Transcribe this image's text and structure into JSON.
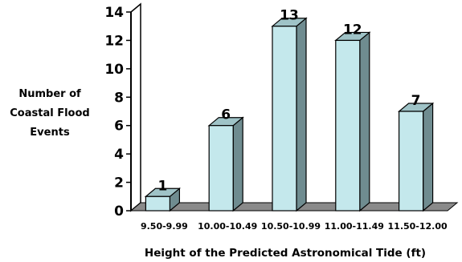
{
  "chart_data": {
    "type": "bar",
    "title": "",
    "xlabel": "Height of the Predicted Astronomical Tide (ft)",
    "ylabel": [
      "Number of",
      "Coastal Flood",
      "Events"
    ],
    "categories": [
      "9.50-9.99",
      "10.00-10.49",
      "10.50-10.99",
      "11.00-11.49",
      "11.50-12.00"
    ],
    "values": [
      1,
      6,
      13,
      12,
      7
    ],
    "data_labels": [
      "1",
      "6",
      "13",
      "12",
      "7"
    ],
    "ylim": [
      0,
      14
    ],
    "yticks": [
      0,
      2,
      4,
      6,
      8,
      10,
      12,
      14
    ],
    "grid": false,
    "style": "3d-column",
    "colors": {
      "bar_front": "#c4e8ec",
      "bar_side": "#6f8c90",
      "bar_top": "#9fc3c7",
      "floor": "#8a8a8a",
      "wall": "#ffffff",
      "edge": "#000000"
    }
  }
}
